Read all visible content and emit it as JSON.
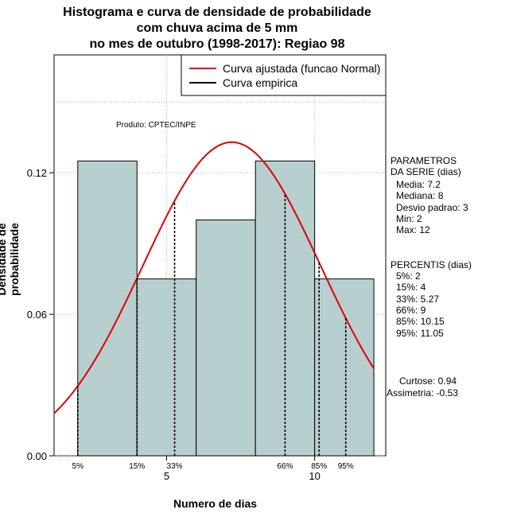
{
  "title_lines": [
    "Histograma e curva de densidade de probabilidade",
    "com chuva acima de 5 mm",
    "no mes de outubro (1998-2017): Regiao 98"
  ],
  "product_note": "Produto: CPTEC/INPE",
  "legend": [
    {
      "label": "Curva ajustada (funcao Normal)",
      "color": "#e00000"
    },
    {
      "label": "Curva empirica",
      "color": "#000000"
    }
  ],
  "params": {
    "heading": [
      "PARAMETROS",
      "DA SERIE (dias)"
    ],
    "lines": [
      "Media: 7.2",
      "Mediana: 8",
      "Desvio padrao: 3",
      "Min: 2",
      "Max: 12"
    ]
  },
  "percentis": {
    "heading": "PERCENTIS (dias)",
    "lines": [
      "5%: 2",
      "15%: 4",
      "33%: 5.27",
      "66%: 9",
      "85%: 10.15",
      "95%: 11.05"
    ]
  },
  "shape_stats": [
    "Curtose: 0.94",
    "Assimetria: -0.53"
  ],
  "colors": {
    "bar_fill": "#b7cfcf",
    "curve": "#e00000",
    "grid": "#b0b0b0"
  },
  "chart_data": {
    "type": "bar",
    "xlabel": "Numero de dias",
    "ylabel": "Densidade de probabilidade",
    "xlim": [
      1.2,
      12.4
    ],
    "ylim": [
      0,
      0.17
    ],
    "x_ticks": [
      5,
      10
    ],
    "y_ticks": [
      "0.00",
      "0.06",
      "0.12"
    ],
    "y_tick_values": [
      0,
      0.06,
      0.12
    ],
    "bins": [
      {
        "start": 2,
        "end": 4,
        "density": 0.125
      },
      {
        "start": 4,
        "end": 6,
        "density": 0.075
      },
      {
        "start": 6,
        "end": 8,
        "density": 0.1
      },
      {
        "start": 8,
        "end": 10,
        "density": 0.125
      },
      {
        "start": 10,
        "end": 12,
        "density": 0.075
      }
    ],
    "normal_curve": {
      "mean": 7.2,
      "sd": 3
    },
    "percentile_lines": [
      {
        "label": "5%",
        "x": 2
      },
      {
        "label": "15%",
        "x": 4
      },
      {
        "label": "33%",
        "x": 5.27
      },
      {
        "label": "66%",
        "x": 9
      },
      {
        "label": "85%",
        "x": 10.15
      },
      {
        "label": "95%",
        "x": 11.05
      }
    ],
    "grid": true,
    "legend_position": "top-right"
  }
}
